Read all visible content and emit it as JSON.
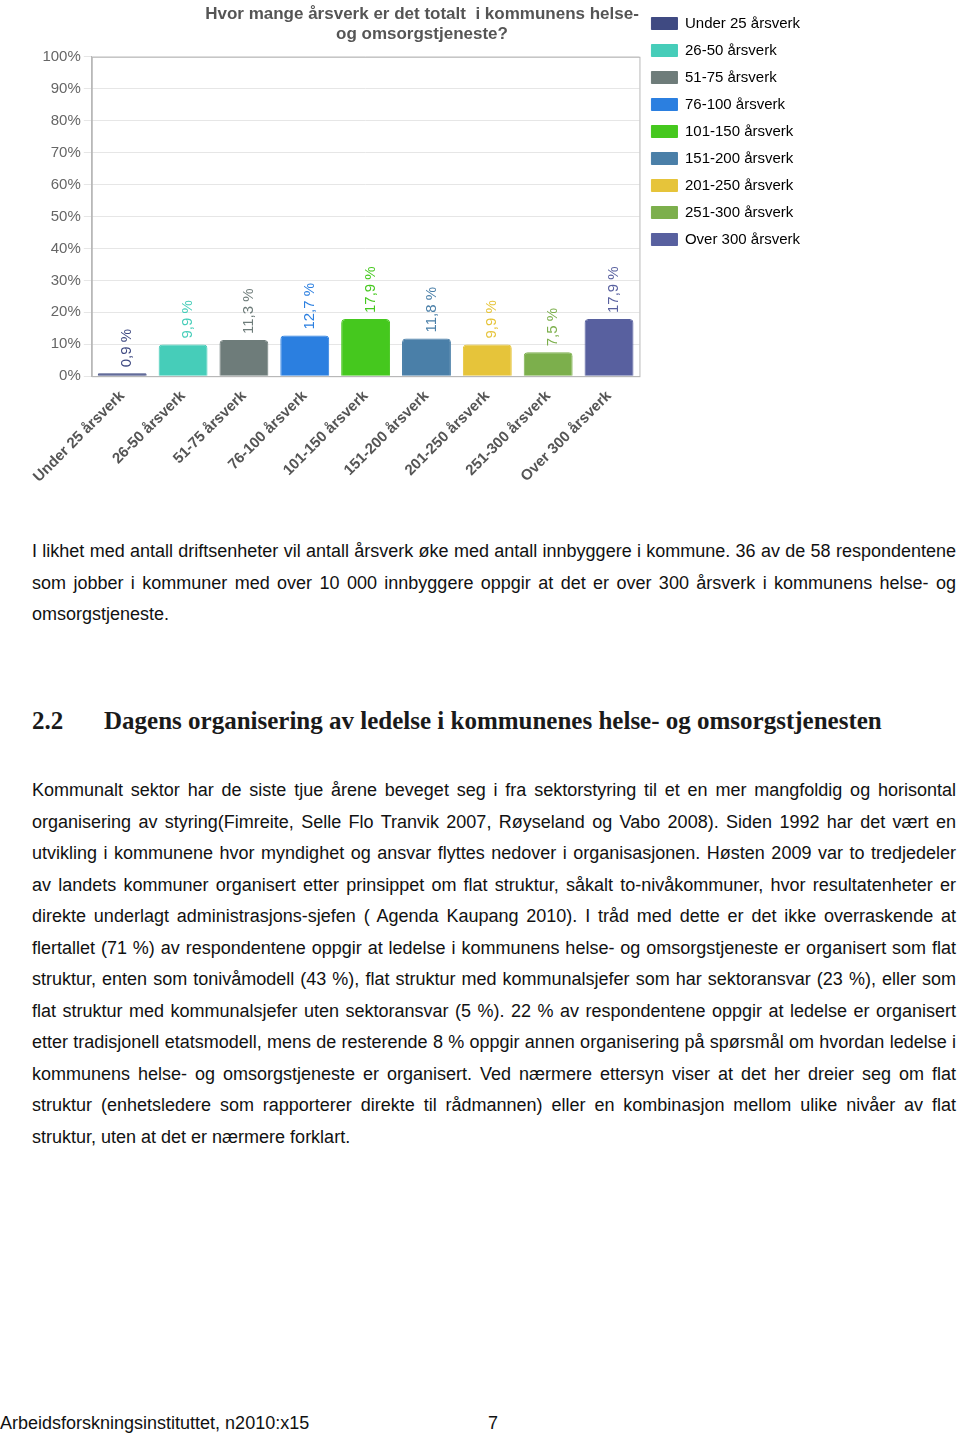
{
  "chart_data": {
    "type": "bar",
    "title": [
      "Hvor mange årsverk er det totalt  i kommunens helse-",
      "og omsorgstjeneste?"
    ],
    "categories": [
      "Under 25 årsverk",
      "26-50 årsverk",
      "51-75 årsverk",
      "76-100 årsverk",
      "101-150 årsverk",
      "151-200 årsverk",
      "201-250 årsverk",
      "251-300 årsverk",
      "Over 300 årsverk"
    ],
    "values": [
      0.9,
      9.9,
      11.3,
      12.7,
      17.9,
      11.8,
      9.9,
      7.5,
      17.9
    ],
    "value_labels": [
      "0,9 %",
      "9,9 %",
      "11,3 %",
      "12,7 %",
      "17,9 %",
      "11,8 %",
      "9,9 %",
      "7,5 %",
      "17,9 %"
    ],
    "colors": [
      "#3f4a82",
      "#46cdb9",
      "#6e7c7a",
      "#2b7fe0",
      "#45c81e",
      "#4a7fa8",
      "#e6c43a",
      "#7caf4c",
      "#58609f"
    ],
    "ylim": [
      0,
      100
    ],
    "yticks": [
      {
        "value": 0,
        "label": "0%"
      },
      {
        "value": 10,
        "label": "10%"
      },
      {
        "value": 20,
        "label": "20%"
      },
      {
        "value": 30,
        "label": "30%"
      },
      {
        "value": 40,
        "label": "40%"
      },
      {
        "value": 50,
        "label": "50%"
      },
      {
        "value": 60,
        "label": "60%"
      },
      {
        "value": 70,
        "label": "70%"
      },
      {
        "value": 80,
        "label": "80%"
      },
      {
        "value": 90,
        "label": "90%"
      },
      {
        "value": 100,
        "label": "100%"
      }
    ],
    "grid": true,
    "legend": "right",
    "data_labels": true
  },
  "document": {
    "paragraph_1": "I likhet med antall driftsenheter vil antall årsverk øke med antall innbyggere i kommune. 36 av de 58 respondentene som jobber i kommuner med over 10 000 innbyggere oppgir at det er over 300 årsverk i kommunens helse- og omsorgstjeneste.",
    "section": {
      "number": "2.2",
      "title": "Dagens organisering av ledelse i kommunenes helse- og omsorgstjenesten"
    },
    "paragraph_2": "Kommunalt sektor har de siste tjue årene beveget seg i fra sektorstyring til et en mer mangfoldig og horisontal organisering av styring(Fimreite, Selle Flo Tranvik 2007, Røyseland og Vabo 2008). Siden 1992 har det vært en utvikling i kommunene hvor myndighet og ansvar flyttes nedover i organisasjonen. Høsten 2009 var to tredjedeler av landets kommuner organisert etter prinsippet om flat struktur, såkalt to-nivåkommuner, hvor resultatenheter er direkte underlagt administrasjons-sjefen ( Agenda Kaupang 2010). I tråd med dette er det ikke overraskende at flertallet (71 %) av respondentene oppgir at ledelse i kommunens helse- og omsorgstjeneste er organisert som flat struktur, enten som tonivåmodell (43 %), flat struktur med kommunalsjefer som har sektoransvar (23 %), eller som flat struktur med kommunalsjefer uten sektoransvar (5 %). 22 % av respondentene oppgir at ledelse er organisert etter tradisjonell etatsmodell, mens de resterende 8 % oppgir annen organisering på spørsmål om hvordan ledelse i kommunens helse- og omsorgstjeneste er organisert. Ved nærmere ettersyn viser at det her dreier seg om flat struktur (enhetsledere som rapporterer direkte til rådmannen) eller en kombinasjon mellom ulike nivåer av flat struktur, uten at det er nærmere forklart.",
    "footer": {
      "source": "Arbeidsforskningsinstituttet, n2010:x15",
      "page": "7"
    }
  }
}
